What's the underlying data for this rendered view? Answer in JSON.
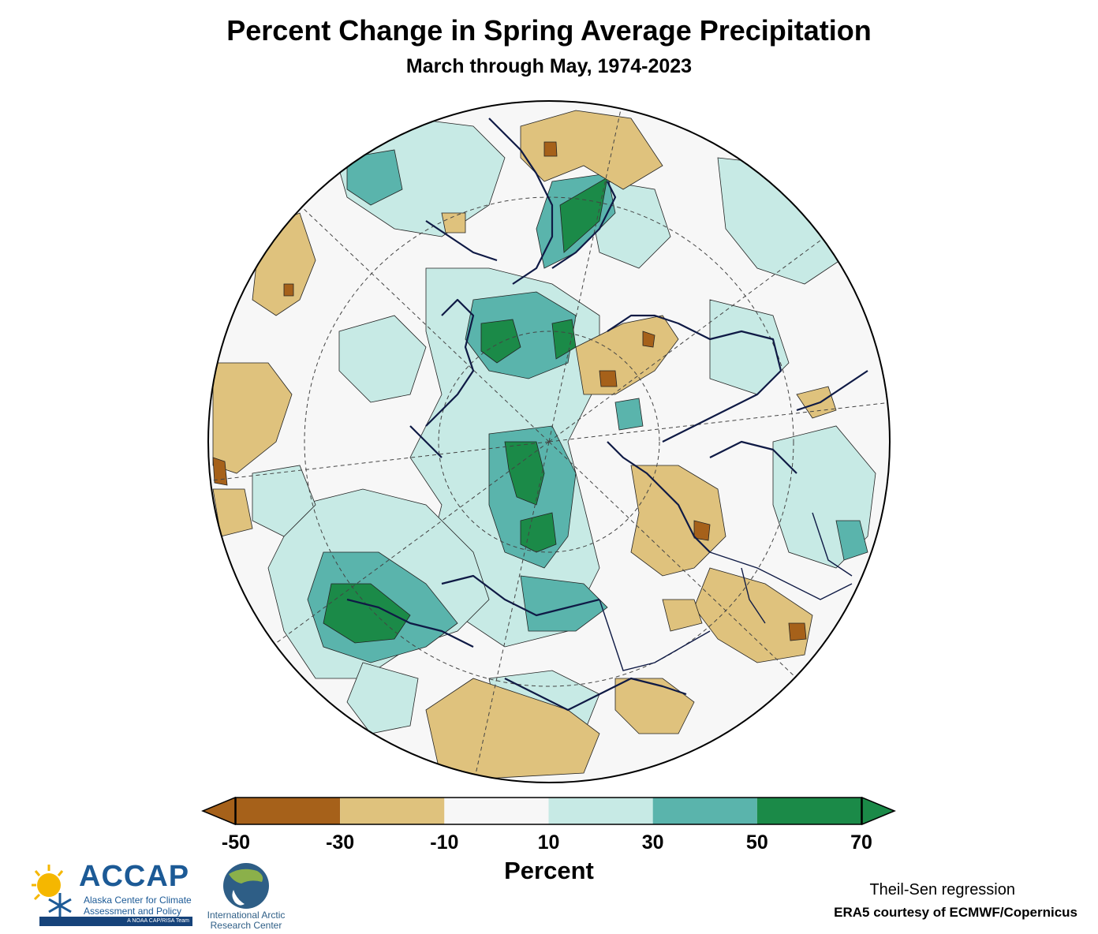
{
  "title": "Percent Change in Spring Average Precipitation",
  "subtitle": "March through May, 1974-2023",
  "colorbar": {
    "title": "Percent",
    "ticks": [
      "-50",
      "-30",
      "-10",
      "10",
      "30",
      "50",
      "70"
    ],
    "bins": [
      {
        "range": "<-50",
        "color": "#a6611a"
      },
      {
        "range": "-50 to -30",
        "color": "#a6611a"
      },
      {
        "range": "-30 to -10",
        "color": "#dfc27d"
      },
      {
        "range": "-10 to 10",
        "color": "#f7f7f7"
      },
      {
        "range": "10 to 30",
        "color": "#c7eae5"
      },
      {
        "range": "30 to 50",
        "color": "#5ab4ac"
      },
      {
        "range": "50 to 70",
        "color": "#1b8a48"
      },
      {
        "range": ">70",
        "color": "#1b8a48"
      }
    ],
    "extend": "both"
  },
  "map": {
    "projection": "north-polar-stereographic",
    "coast_color": "#0f1a45",
    "graticule": "dashed"
  },
  "credits": {
    "method": "Theil-Sen regression",
    "data_source": "ERA5 courtesy of ECMWF/Copernicus"
  },
  "logos": {
    "accap": {
      "name": "ACCAP",
      "line1": "Alaska Center for Climate",
      "line2": "Assessment and Policy",
      "tagline": "A NOAA CAP/RISA Team"
    },
    "iarc": {
      "line1": "International Arctic",
      "line2": "Research Center"
    }
  }
}
